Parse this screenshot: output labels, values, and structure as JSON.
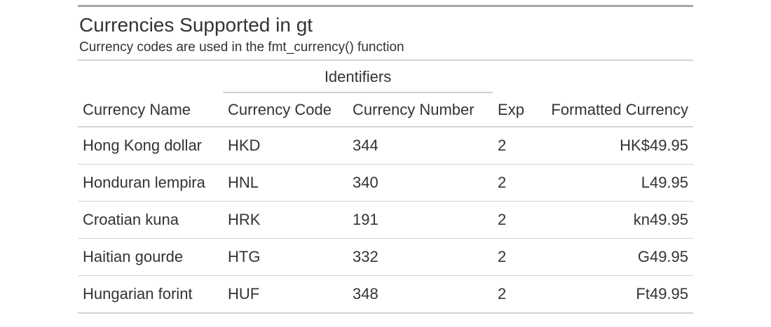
{
  "table": {
    "title": "Currencies Supported in gt",
    "subtitle": "Currency codes are used in the fmt_currency() function",
    "spanner": "Identifiers",
    "columns": {
      "name": "Currency Name",
      "code": "Currency Code",
      "number": "Currency Number",
      "exp": "Exp",
      "formatted": "Formatted Currency"
    },
    "rows": [
      {
        "name": "Hong Kong dollar",
        "code": "HKD",
        "number": "344",
        "exp": "2",
        "formatted": "HK$49.95"
      },
      {
        "name": "Honduran lempira",
        "code": "HNL",
        "number": "340",
        "exp": "2",
        "formatted": "L49.95"
      },
      {
        "name": "Croatian kuna",
        "code": "HRK",
        "number": "191",
        "exp": "2",
        "formatted": "kn49.95"
      },
      {
        "name": "Haitian gourde",
        "code": "HTG",
        "number": "332",
        "exp": "2",
        "formatted": "G49.95"
      },
      {
        "name": "Hungarian forint",
        "code": "HUF",
        "number": "348",
        "exp": "2",
        "formatted": "Ft49.95"
      }
    ]
  }
}
